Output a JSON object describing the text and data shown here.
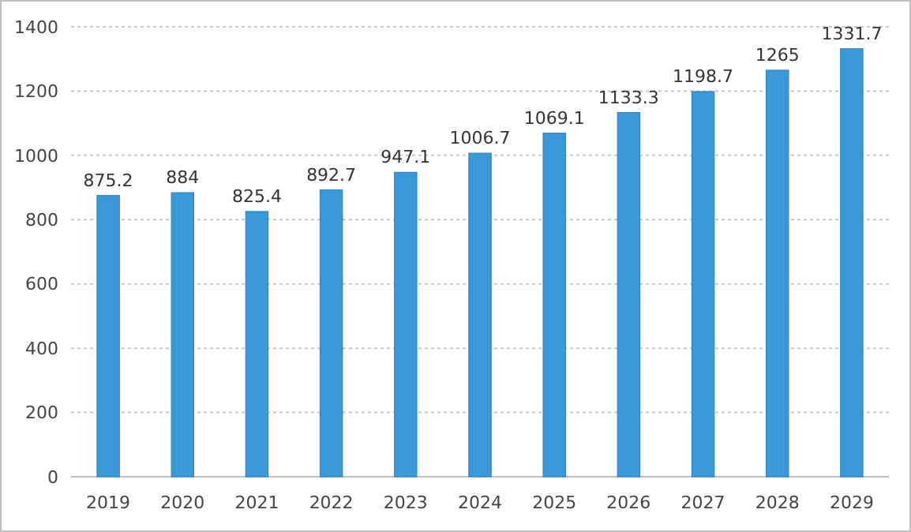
{
  "chart_data": {
    "type": "bar",
    "categories": [
      "2019",
      "2020",
      "2021",
      "2022",
      "2023",
      "2024",
      "2025",
      "2026",
      "2027",
      "2028",
      "2029"
    ],
    "values": [
      875.2,
      884,
      825.4,
      892.7,
      947.1,
      1006.7,
      1069.1,
      1133.3,
      1198.7,
      1265,
      1331.7
    ],
    "color": "#3a9ad9",
    "ylim": [
      0,
      1400
    ],
    "yticks": [
      0,
      200,
      400,
      600,
      800,
      1000,
      1200,
      1400
    ],
    "grid": "y",
    "data_labels": true
  }
}
